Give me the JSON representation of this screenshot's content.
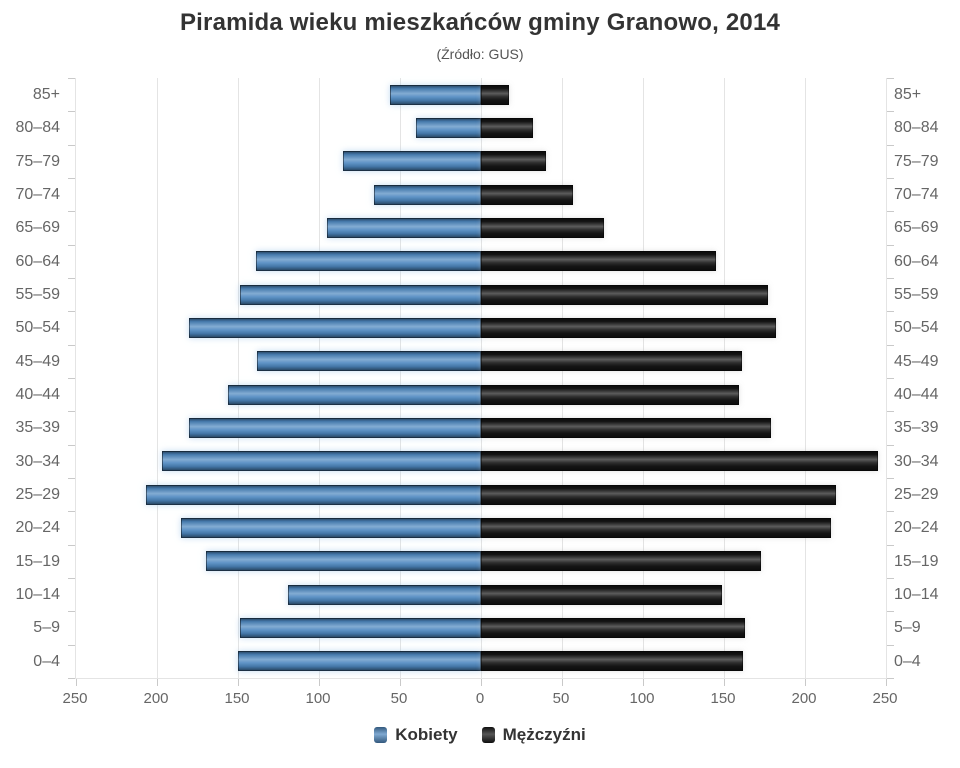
{
  "chart_data": {
    "type": "bar",
    "subtype": "population-pyramid",
    "title": "Piramida wieku mieszkańców gminy Granowo, 2014",
    "subtitle": "(Źródło: GUS)",
    "categories": [
      "85+",
      "80–84",
      "75–79",
      "70–74",
      "65–69",
      "60–64",
      "55–59",
      "50–54",
      "45–49",
      "40–44",
      "35–39",
      "30–34",
      "25–29",
      "20–24",
      "15–19",
      "10–14",
      "5–9",
      "0–4"
    ],
    "series": [
      {
        "name": "Kobiety",
        "side": "left",
        "color": "#4e88c0",
        "values": [
          56,
          40,
          85,
          66,
          95,
          139,
          149,
          180,
          138,
          156,
          180,
          197,
          207,
          185,
          170,
          119,
          149,
          150
        ]
      },
      {
        "name": "Mężczyźni",
        "side": "right",
        "color": "#161616",
        "values": [
          17,
          32,
          40,
          57,
          76,
          145,
          177,
          182,
          161,
          159,
          179,
          245,
          219,
          216,
          173,
          149,
          163,
          162
        ]
      }
    ],
    "x_ticks": [
      250,
      200,
      150,
      100,
      50,
      0,
      50,
      100,
      150,
      200,
      250
    ],
    "axis_max": 250,
    "grid": true,
    "legend_position": "bottom",
    "colors": {
      "gridline": "#e4e4e4",
      "tick": "#c9c9c9",
      "axis_label": "#666666",
      "title": "#333333"
    }
  }
}
